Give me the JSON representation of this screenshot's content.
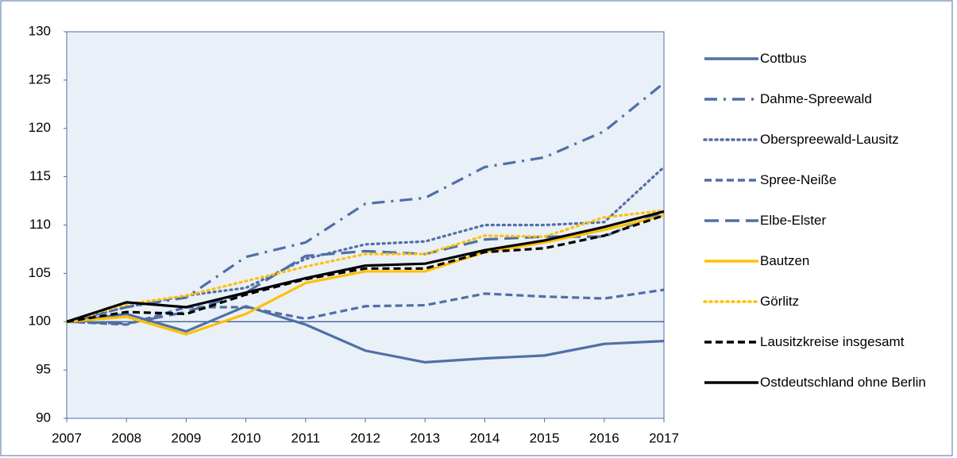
{
  "chart_data": {
    "type": "line",
    "x": [
      2007,
      2008,
      2009,
      2010,
      2011,
      2012,
      2013,
      2014,
      2015,
      2016,
      2017
    ],
    "xlim": [
      2007,
      2017
    ],
    "xticks": [
      2007,
      2008,
      2009,
      2010,
      2011,
      2012,
      2013,
      2014,
      2015,
      2016,
      2017
    ],
    "ylim": [
      90,
      130
    ],
    "yticks": [
      90,
      95,
      100,
      105,
      110,
      115,
      120,
      125,
      130
    ],
    "reference_line": 100,
    "legend": "right",
    "series": [
      {
        "name": "Cottbus",
        "color": "#4f6fa8",
        "dash": "solid",
        "values": [
          100,
          100.8,
          99.0,
          101.6,
          99.7,
          97.0,
          95.8,
          96.2,
          96.5,
          97.7,
          98.0
        ]
      },
      {
        "name": "Dahme-Spreewald",
        "color": "#4f6fa8",
        "dash": "dashdot",
        "values": [
          100,
          101.5,
          102.5,
          106.7,
          108.2,
          112.2,
          112.8,
          116.0,
          117.0,
          119.7,
          124.7
        ]
      },
      {
        "name": "Oberspreewald-Lausitz",
        "color": "#4f6fa8",
        "dash": "dotted",
        "values": [
          100,
          101.5,
          102.7,
          103.5,
          106.5,
          108.0,
          108.3,
          110.0,
          110.0,
          110.3,
          116.0
        ]
      },
      {
        "name": "Spree-Neiße",
        "color": "#4f6fa8",
        "dash": "dashed",
        "values": [
          100,
          99.7,
          101.5,
          101.5,
          100.3,
          101.6,
          101.7,
          102.9,
          102.6,
          102.4,
          103.3
        ]
      },
      {
        "name": "Elbe-Elster",
        "color": "#4f6fa8",
        "dash": "longdash",
        "values": [
          100,
          99.8,
          101.0,
          103.0,
          106.8,
          107.3,
          107.0,
          108.5,
          108.8,
          108.8,
          111.4
        ]
      },
      {
        "name": "Bautzen",
        "color": "#ffc000",
        "dash": "solid",
        "values": [
          100,
          100.5,
          98.7,
          100.8,
          104.0,
          105.2,
          105.2,
          107.2,
          108.2,
          109.5,
          111.0
        ]
      },
      {
        "name": "Görlitz",
        "color": "#ffc000",
        "dash": "dotted",
        "values": [
          100,
          101.8,
          102.7,
          104.2,
          105.7,
          107.0,
          107.0,
          108.9,
          108.8,
          110.8,
          111.5
        ]
      },
      {
        "name": "Lausitzkreise insgesamt",
        "color": "#000000",
        "dash": "dashed",
        "values": [
          100,
          101.0,
          100.8,
          102.8,
          104.4,
          105.5,
          105.5,
          107.2,
          107.6,
          108.9,
          111.0
        ]
      },
      {
        "name": "Ostdeutschland ohne Berlin",
        "color": "#000000",
        "dash": "solid",
        "values": [
          100,
          102.0,
          101.5,
          103.0,
          104.5,
          105.8,
          106.0,
          107.4,
          108.4,
          109.8,
          111.4
        ]
      }
    ]
  }
}
